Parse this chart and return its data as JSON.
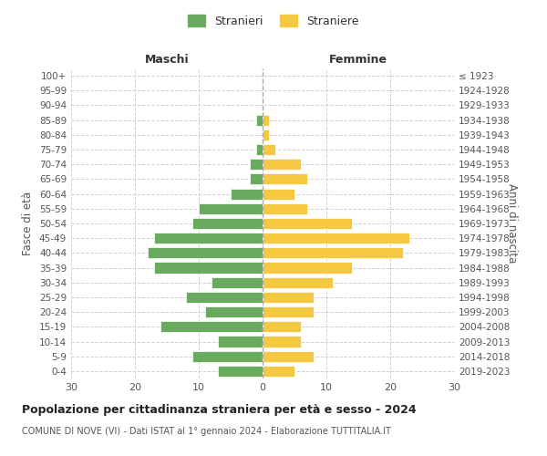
{
  "age_groups": [
    "0-4",
    "5-9",
    "10-14",
    "15-19",
    "20-24",
    "25-29",
    "30-34",
    "35-39",
    "40-44",
    "45-49",
    "50-54",
    "55-59",
    "60-64",
    "65-69",
    "70-74",
    "75-79",
    "80-84",
    "85-89",
    "90-94",
    "95-99",
    "100+"
  ],
  "birth_years": [
    "2019-2023",
    "2014-2018",
    "2009-2013",
    "2004-2008",
    "1999-2003",
    "1994-1998",
    "1989-1993",
    "1984-1988",
    "1979-1983",
    "1974-1978",
    "1969-1973",
    "1964-1968",
    "1959-1963",
    "1954-1958",
    "1949-1953",
    "1944-1948",
    "1939-1943",
    "1934-1938",
    "1929-1933",
    "1924-1928",
    "≤ 1923"
  ],
  "males": [
    7,
    11,
    7,
    16,
    9,
    12,
    8,
    17,
    18,
    17,
    11,
    10,
    5,
    2,
    2,
    1,
    0,
    1,
    0,
    0,
    0
  ],
  "females": [
    5,
    8,
    6,
    6,
    8,
    8,
    11,
    14,
    22,
    23,
    14,
    7,
    5,
    7,
    6,
    2,
    1,
    1,
    0,
    0,
    0
  ],
  "male_color": "#6aaa5e",
  "female_color": "#f5c842",
  "title": "Popolazione per cittadinanza straniera per età e sesso - 2024",
  "subtitle": "COMUNE DI NOVE (VI) - Dati ISTAT al 1° gennaio 2024 - Elaborazione TUTTITALIA.IT",
  "xlabel_left": "Maschi",
  "xlabel_right": "Femmine",
  "ylabel_left": "Fasce di età",
  "ylabel_right": "Anni di nascita",
  "legend_male": "Stranieri",
  "legend_female": "Straniere",
  "xlim": 30,
  "background_color": "#ffffff",
  "grid_color": "#cccccc"
}
